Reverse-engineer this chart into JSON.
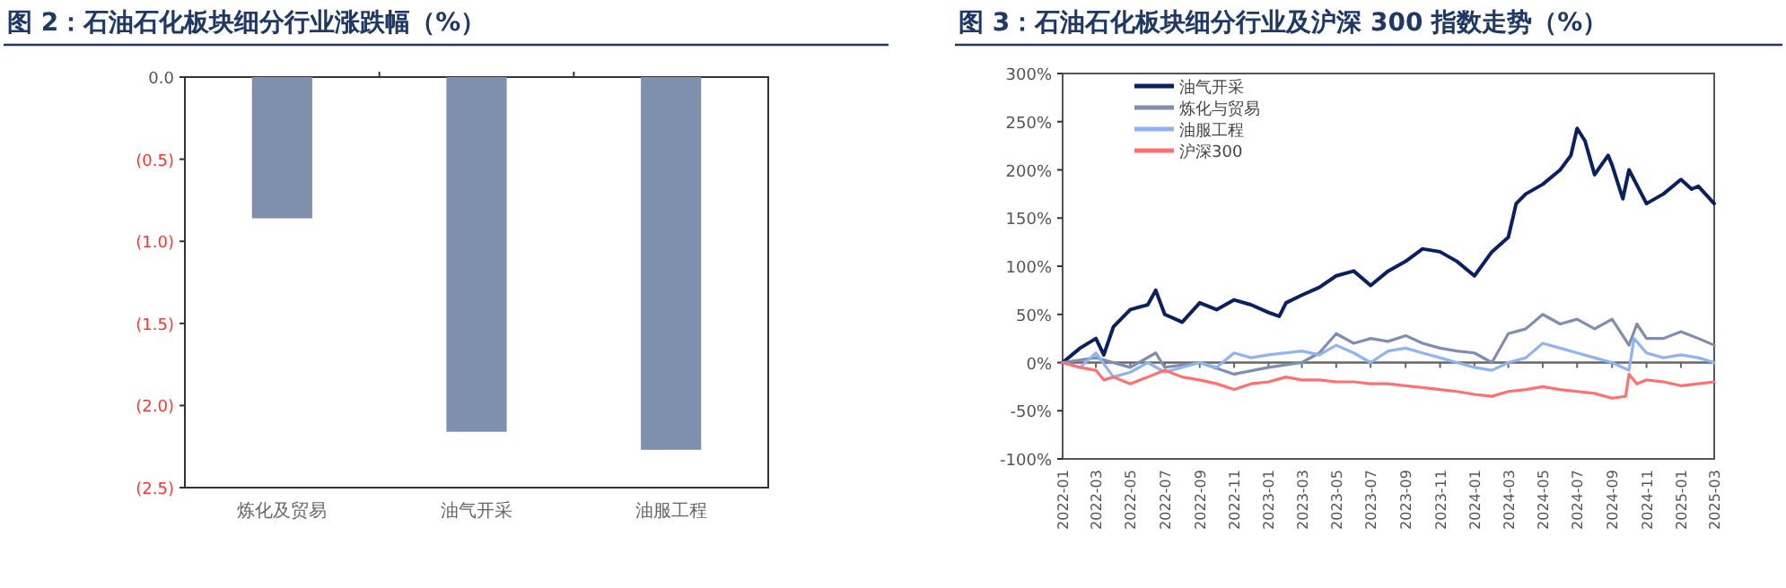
{
  "chart_data": [
    {
      "type": "bar",
      "title": "图 2：石油石化板块细分行业涨跌幅（%）",
      "categories": [
        "炼化及贸易",
        "油气开采",
        "油服工程"
      ],
      "values": [
        -0.86,
        -2.16,
        -2.27
      ],
      "color": "#7f8fae",
      "ylim": [
        -2.5,
        0
      ],
      "yticks": [
        {
          "value": 0,
          "label": "0.0"
        },
        {
          "value": -0.5,
          "label": "(0.5)"
        },
        {
          "value": -1,
          "label": "(1.0)"
        },
        {
          "value": -1.5,
          "label": "(1.5)"
        },
        {
          "value": -2,
          "label": "(2.0)"
        },
        {
          "value": -2.5,
          "label": "(2.5)"
        }
      ]
    },
    {
      "type": "line",
      "title": "图 3：石油石化板块细分行业及沪深 300 指数走势（%）",
      "legend": "top left",
      "xlim": [
        "2022-01",
        "2025-03"
      ],
      "xticks": [
        "2022-01",
        "2022-03",
        "2022-05",
        "2022-07",
        "2022-09",
        "2022-11",
        "2023-01",
        "2023-03",
        "2023-05",
        "2023-07",
        "2023-09",
        "2023-11",
        "2024-01",
        "2024-03",
        "2024-05",
        "2024-07",
        "2024-09",
        "2024-11",
        "2025-01",
        "2025-03"
      ],
      "ylim": [
        -100,
        300
      ],
      "yticks": [
        {
          "value": 300,
          "label": "300%"
        },
        {
          "value": 250,
          "label": "250%"
        },
        {
          "value": 200,
          "label": "200%"
        },
        {
          "value": 150,
          "label": "150%"
        },
        {
          "value": 100,
          "label": "100%"
        },
        {
          "value": 50,
          "label": "50%"
        },
        {
          "value": 0,
          "label": "0%"
        },
        {
          "value": -50,
          "label": "-50%"
        },
        {
          "value": -100,
          "label": "-100%"
        }
      ],
      "series": [
        {
          "name": "油气开采",
          "color": "#0b2060",
          "x": [
            "2022-01",
            "2022-02",
            "2022-03",
            "2022-03-15",
            "2022-04",
            "2022-05",
            "2022-06",
            "2022-06-15",
            "2022-07",
            "2022-08",
            "2022-09",
            "2022-10",
            "2022-11",
            "2022-12",
            "2023-01",
            "2023-01-20",
            "2023-02",
            "2023-03",
            "2023-04",
            "2023-05",
            "2023-06",
            "2023-07",
            "2023-08",
            "2023-09",
            "2023-10",
            "2023-11",
            "2023-12",
            "2024-01",
            "2024-02",
            "2024-03",
            "2024-03-15",
            "2024-04",
            "2024-05",
            "2024-06",
            "2024-06-20",
            "2024-07",
            "2024-07-15",
            "2024-08",
            "2024-08-25",
            "2024-09",
            "2024-09-20",
            "2024-10",
            "2024-11",
            "2024-12",
            "2025-01",
            "2025-01-20",
            "2025-02",
            "2025-03"
          ],
          "values": [
            0,
            15,
            25,
            8,
            37,
            55,
            60,
            75,
            50,
            42,
            62,
            55,
            65,
            60,
            52,
            48,
            62,
            70,
            78,
            90,
            95,
            80,
            95,
            105,
            118,
            115,
            105,
            90,
            115,
            130,
            165,
            175,
            185,
            200,
            215,
            243,
            230,
            195,
            215,
            205,
            170,
            200,
            165,
            175,
            190,
            180,
            183,
            165
          ]
        },
        {
          "name": "炼化与贸易",
          "color": "#7f8db0",
          "x": [
            "2022-01",
            "2022-03",
            "2022-05",
            "2022-06-15",
            "2022-07",
            "2022-09",
            "2022-11",
            "2023-01",
            "2023-03",
            "2023-04",
            "2023-05",
            "2023-06",
            "2023-07",
            "2023-08",
            "2023-09",
            "2023-10",
            "2023-11",
            "2023-12",
            "2024-01",
            "2024-02",
            "2024-03",
            "2024-04",
            "2024-05",
            "2024-06",
            "2024-07",
            "2024-08",
            "2024-09",
            "2024-10",
            "2024-10-15",
            "2024-11",
            "2024-12",
            "2025-01",
            "2025-02",
            "2025-03"
          ],
          "values": [
            0,
            5,
            -5,
            10,
            -5,
            0,
            -12,
            -5,
            0,
            10,
            30,
            20,
            25,
            22,
            28,
            20,
            15,
            12,
            10,
            0,
            30,
            35,
            50,
            40,
            45,
            35,
            45,
            18,
            40,
            25,
            25,
            32,
            25,
            18
          ]
        },
        {
          "name": "油服工程",
          "color": "#8fb4f0",
          "x": [
            "2022-01",
            "2022-02",
            "2022-03",
            "2022-04",
            "2022-05",
            "2022-06",
            "2022-07",
            "2022-09",
            "2022-10",
            "2022-11",
            "2022-12",
            "2023-01",
            "2023-03",
            "2023-04",
            "2023-05",
            "2023-06",
            "2023-07",
            "2023-08",
            "2023-09",
            "2023-10",
            "2023-11",
            "2023-12",
            "2024-01",
            "2024-02",
            "2024-03",
            "2024-04",
            "2024-05",
            "2024-06",
            "2024-07",
            "2024-08",
            "2024-09",
            "2024-10",
            "2024-10-10",
            "2024-11",
            "2024-12",
            "2025-01",
            "2025-02",
            "2025-03"
          ],
          "values": [
            0,
            -5,
            10,
            -15,
            -10,
            0,
            -10,
            0,
            -5,
            10,
            5,
            8,
            12,
            8,
            18,
            10,
            0,
            12,
            15,
            10,
            5,
            0,
            -5,
            -8,
            0,
            5,
            20,
            15,
            10,
            5,
            0,
            -8,
            25,
            10,
            5,
            8,
            5,
            0
          ]
        },
        {
          "name": "沪深300",
          "color": "#ff7070",
          "x": [
            "2022-01",
            "2022-02",
            "2022-03",
            "2022-03-15",
            "2022-04",
            "2022-05",
            "2022-06",
            "2022-07",
            "2022-08",
            "2022-09",
            "2022-10",
            "2022-11",
            "2022-12",
            "2023-01",
            "2023-02",
            "2023-03",
            "2023-04",
            "2023-05",
            "2023-06",
            "2023-07",
            "2023-08",
            "2023-09",
            "2023-10",
            "2023-11",
            "2023-12",
            "2024-01",
            "2024-02",
            "2024-03",
            "2024-04",
            "2024-05",
            "2024-06",
            "2024-07",
            "2024-08",
            "2024-09",
            "2024-09-25",
            "2024-10",
            "2024-10-15",
            "2024-11",
            "2024-12",
            "2025-01",
            "2025-02",
            "2025-03"
          ],
          "values": [
            0,
            -5,
            -8,
            -18,
            -15,
            -22,
            -15,
            -8,
            -15,
            -18,
            -22,
            -28,
            -22,
            -20,
            -15,
            -18,
            -18,
            -20,
            -20,
            -22,
            -22,
            -24,
            -26,
            -28,
            -30,
            -33,
            -35,
            -30,
            -28,
            -25,
            -28,
            -30,
            -32,
            -37,
            -35,
            -12,
            -22,
            -18,
            -20,
            -24,
            -22,
            -20
          ]
        }
      ]
    }
  ]
}
